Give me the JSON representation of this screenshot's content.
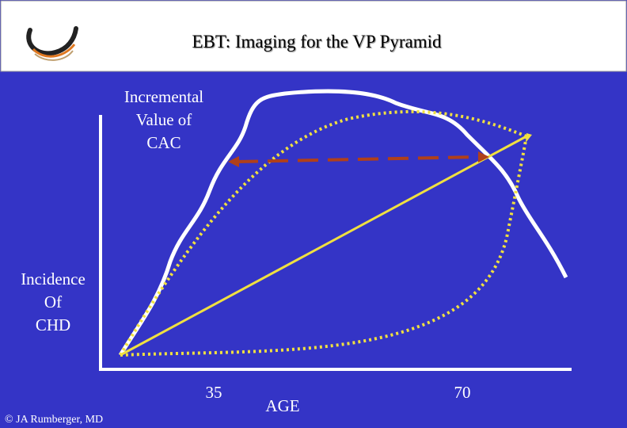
{
  "header": {
    "title": "EBT: Imaging for the VP Pyramid"
  },
  "diagram": {
    "y_label_top": [
      "Incremental",
      "Value of",
      "CAC"
    ],
    "y_label_left": [
      "Incidence",
      "Of",
      "CHD"
    ],
    "x_tick_labels": [
      "35",
      "70"
    ],
    "x_label": "AGE"
  },
  "footer": {
    "credit": "© JA Rumberger, MD"
  }
}
